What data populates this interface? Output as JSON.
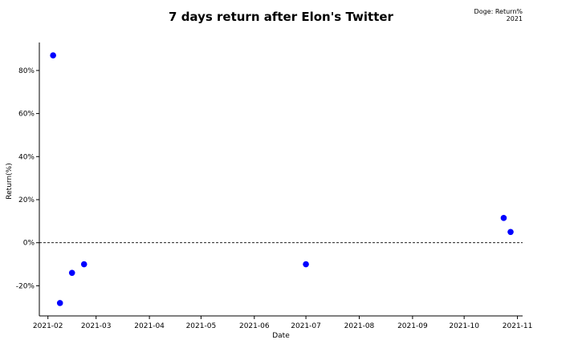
{
  "chart_data": {
    "type": "scatter",
    "title": "7 days return after Elon's Twitter",
    "annotation_line1": "Doge: Return%",
    "annotation_line2": "2021",
    "xlabel": "Date",
    "ylabel": "Return(%)",
    "x_ticks": [
      "2021-02",
      "2021-03",
      "2021-04",
      "2021-05",
      "2021-06",
      "2021-07",
      "2021-08",
      "2021-09",
      "2021-10",
      "2021-11"
    ],
    "y_ticks": [
      -20,
      0,
      20,
      40,
      60,
      80
    ],
    "y_tick_labels": [
      "-20%",
      "0%",
      "20%",
      "40%",
      "60%",
      "80%"
    ],
    "xlim": [
      "2021-01-27",
      "2021-11-04"
    ],
    "ylim": [
      -34,
      93
    ],
    "reference_line_y": 0,
    "grid": false,
    "point_color": "#0000ff",
    "points": [
      {
        "x": "2021-02-04",
        "y": 87
      },
      {
        "x": "2021-02-08",
        "y": -28
      },
      {
        "x": "2021-02-15",
        "y": -14
      },
      {
        "x": "2021-02-22",
        "y": -10
      },
      {
        "x": "2021-07-01",
        "y": -10
      },
      {
        "x": "2021-10-24",
        "y": 11.5
      },
      {
        "x": "2021-10-28",
        "y": 5
      }
    ]
  }
}
